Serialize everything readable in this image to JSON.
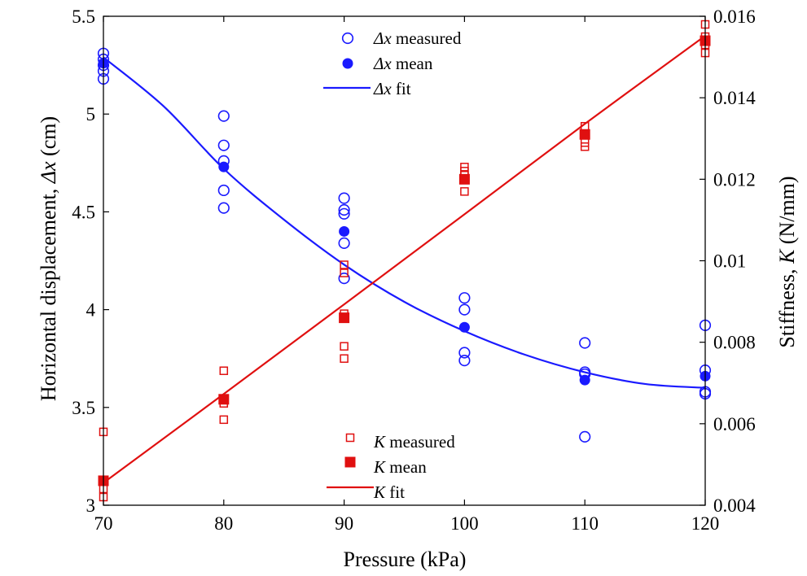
{
  "chart_data": {
    "type": "scatter",
    "xlabel": "Pressure (kPa)",
    "ylabel_left": {
      "prefix": "Horizontal displacement, ",
      "symbol": "Δx",
      "suffix": " (cm)"
    },
    "ylabel_right": {
      "prefix": "Stiffness, ",
      "symbol": "K",
      "suffix": " (N/mm)"
    },
    "x_ticks": [
      "70",
      "80",
      "90",
      "100",
      "110",
      "120"
    ],
    "y_left_ticks": [
      "3",
      "3.5",
      "4",
      "4.5",
      "5",
      "5.5"
    ],
    "y_right_ticks": [
      "0.004",
      "0.006",
      "0.008",
      "0.01",
      "0.012",
      "0.014",
      "0.016"
    ],
    "xlim": [
      70,
      120
    ],
    "ylim_left": [
      3,
      5.5
    ],
    "ylim_right": [
      0.004,
      0.016
    ],
    "colors": {
      "dx": "#1a1aff",
      "k": "#e01010"
    },
    "legend_top": [
      {
        "symbol": "Δx",
        "text": " measured"
      },
      {
        "symbol": "Δx",
        "text": " mean"
      },
      {
        "symbol": "Δx",
        "text": " fit"
      }
    ],
    "legend_bottom": [
      {
        "symbol": "K",
        "text": " measured"
      },
      {
        "symbol": "K",
        "text": " mean"
      },
      {
        "symbol": "K",
        "text": " fit"
      }
    ],
    "series": [
      {
        "name": "Δx measured",
        "axis": "left",
        "marker": "open-circle",
        "points": [
          [
            70,
            5.31
          ],
          [
            70,
            5.28
          ],
          [
            70,
            5.25
          ],
          [
            70,
            5.22
          ],
          [
            70,
            5.18
          ],
          [
            80,
            4.99
          ],
          [
            80,
            4.84
          ],
          [
            80,
            4.76
          ],
          [
            80,
            4.61
          ],
          [
            80,
            4.52
          ],
          [
            90,
            4.57
          ],
          [
            90,
            4.51
          ],
          [
            90,
            4.49
          ],
          [
            90,
            4.34
          ],
          [
            90,
            4.16
          ],
          [
            100,
            4.06
          ],
          [
            100,
            4.0
          ],
          [
            100,
            3.78
          ],
          [
            100,
            3.74
          ],
          [
            110,
            3.83
          ],
          [
            110,
            3.68
          ],
          [
            110,
            3.67
          ],
          [
            110,
            3.35
          ],
          [
            120,
            3.92
          ],
          [
            120,
            3.69
          ],
          [
            120,
            3.58
          ],
          [
            120,
            3.57
          ]
        ]
      },
      {
        "name": "Δx mean",
        "axis": "left",
        "marker": "filled-circle",
        "points": [
          [
            70,
            5.26
          ],
          [
            80,
            4.73
          ],
          [
            90,
            4.4
          ],
          [
            100,
            3.91
          ],
          [
            110,
            3.64
          ],
          [
            120,
            3.66
          ]
        ]
      },
      {
        "name": "Δx fit",
        "axis": "left",
        "marker": "line",
        "points": [
          [
            70,
            5.29
          ],
          [
            75,
            5.04
          ],
          [
            80,
            4.72
          ],
          [
            85,
            4.46
          ],
          [
            90,
            4.23
          ],
          [
            95,
            4.04
          ],
          [
            100,
            3.89
          ],
          [
            105,
            3.77
          ],
          [
            110,
            3.68
          ],
          [
            115,
            3.62
          ],
          [
            120,
            3.6
          ]
        ]
      },
      {
        "name": "K measured",
        "axis": "right",
        "marker": "open-square",
        "points": [
          [
            70,
            0.0058
          ],
          [
            70,
            0.0046
          ],
          [
            70,
            0.0044
          ],
          [
            70,
            0.0042
          ],
          [
            80,
            0.0073
          ],
          [
            80,
            0.0066
          ],
          [
            80,
            0.0065
          ],
          [
            80,
            0.0061
          ],
          [
            90,
            0.0099
          ],
          [
            90,
            0.0097
          ],
          [
            90,
            0.0087
          ],
          [
            90,
            0.0079
          ],
          [
            90,
            0.0076
          ],
          [
            100,
            0.0123
          ],
          [
            100,
            0.0122
          ],
          [
            100,
            0.0121
          ],
          [
            100,
            0.0117
          ],
          [
            110,
            0.0133
          ],
          [
            110,
            0.0131
          ],
          [
            110,
            0.0129
          ],
          [
            110,
            0.0128
          ],
          [
            120,
            0.0158
          ],
          [
            120,
            0.0155
          ],
          [
            120,
            0.0153
          ],
          [
            120,
            0.0151
          ]
        ]
      },
      {
        "name": "K mean",
        "axis": "right",
        "marker": "filled-square",
        "points": [
          [
            70,
            0.0046
          ],
          [
            80,
            0.0066
          ],
          [
            90,
            0.0086
          ],
          [
            100,
            0.012
          ],
          [
            110,
            0.0131
          ],
          [
            120,
            0.0154
          ]
        ]
      },
      {
        "name": "K fit",
        "axis": "right",
        "marker": "line",
        "points": [
          [
            70,
            0.00455
          ],
          [
            80,
            0.00673
          ],
          [
            90,
            0.00893
          ],
          [
            100,
            0.01114
          ],
          [
            110,
            0.01336
          ],
          [
            120,
            0.01552
          ]
        ]
      }
    ]
  }
}
